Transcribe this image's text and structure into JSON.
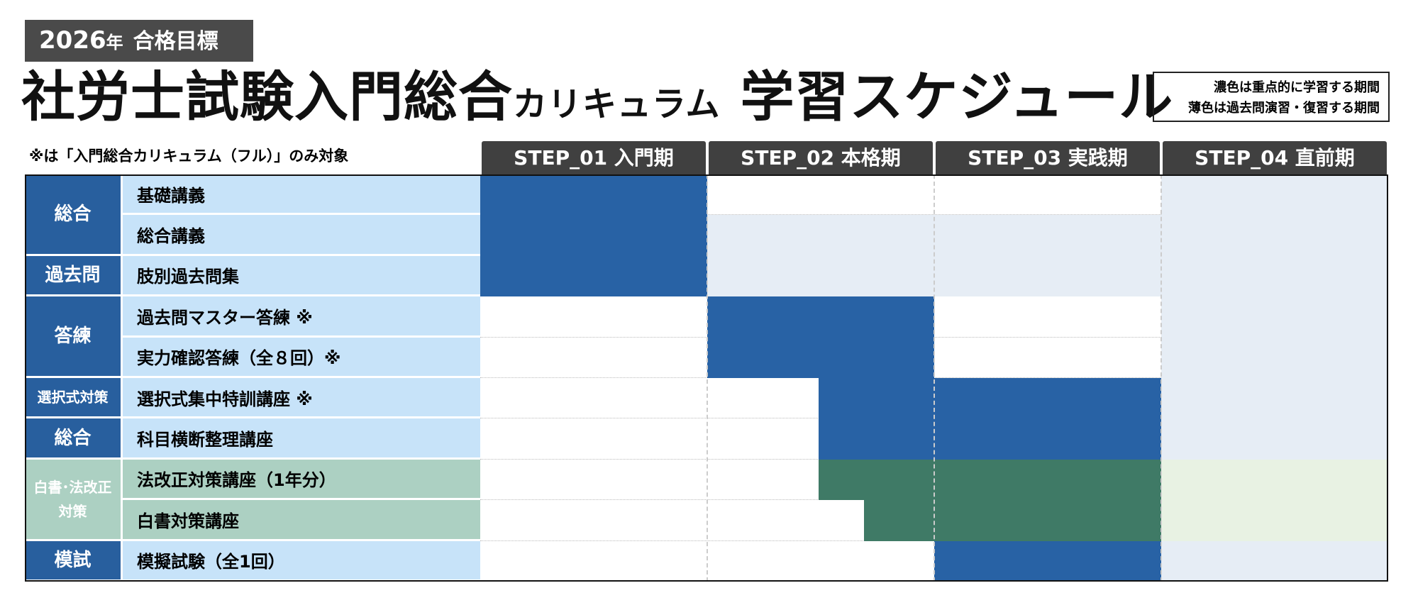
{
  "badge": {
    "year": "2026",
    "year_suffix": "年",
    "label": "合格目標"
  },
  "title": {
    "main": "社労士試験入門総合",
    "sub": "カリキュラム",
    "tail": "学習スケジュール"
  },
  "legend": [
    "濃色は重点的に学習する期間",
    "薄色は過去問演習・復習する期間"
  ],
  "note": "※は「入門総合カリキュラム（フル）」のみ対象",
  "steps": [
    {
      "code": "STEP_01",
      "name": "入門期"
    },
    {
      "code": "STEP_02",
      "name": "本格期"
    },
    {
      "code": "STEP_03",
      "name": "実践期"
    },
    {
      "code": "STEP_04",
      "name": "直前期"
    }
  ],
  "groups": [
    {
      "label": [
        "総合"
      ],
      "items": [
        "基礎講義",
        "総合講義"
      ]
    },
    {
      "label": [
        "過去問"
      ],
      "items": [
        "肢別過去問集"
      ]
    },
    {
      "label": [
        "答練"
      ],
      "items": [
        "過去問マスター答練 ※",
        "実力確認答練（全８回）※"
      ]
    },
    {
      "label": [
        "選択式対策"
      ],
      "items": [
        "選択式集中特訓講座 ※"
      ]
    },
    {
      "label": [
        "総合"
      ],
      "items": [
        "科目横断整理講座"
      ]
    },
    {
      "label": [
        "白書･法改正",
        "対策"
      ],
      "items": [
        "法改正対策講座（1年分）",
        "白書対策講座"
      ]
    },
    {
      "label": [
        "模試"
      ],
      "items": [
        "模擬試験（全1回）"
      ]
    }
  ]
}
